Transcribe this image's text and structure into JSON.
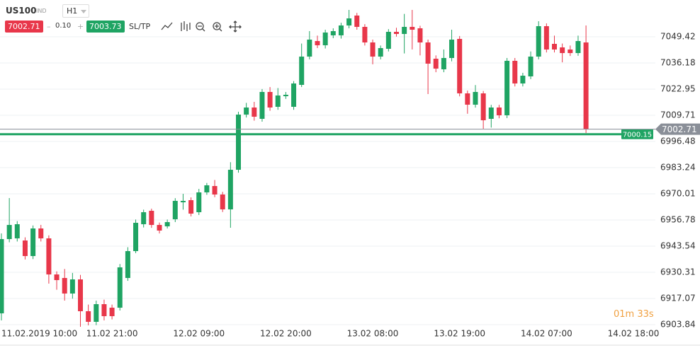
{
  "header": {
    "symbol": "US100",
    "market": "IND",
    "timeframe": "H1",
    "bid": "7002.71",
    "minus": "–",
    "spread": "0.10",
    "plus": "+",
    "ask": "7003.73",
    "sltp": "SL/TP",
    "timer_minutes": "01m",
    "timer_seconds": "33s"
  },
  "chart_data": {
    "type": "candlestick",
    "categories": [
      null,
      null,
      null,
      "11.02.2019 10:00",
      null,
      null,
      null,
      null,
      null,
      null,
      null,
      null,
      null,
      null,
      "11.02 21:00",
      null,
      null,
      null,
      null,
      null,
      null,
      null,
      null,
      null,
      null,
      "12.02 09:00",
      null,
      null,
      null,
      null,
      null,
      null,
      null,
      null,
      null,
      null,
      "12.02 20:00",
      null,
      null,
      null,
      null,
      null,
      null,
      null,
      null,
      null,
      null,
      "13.02 08:00",
      null,
      null,
      null,
      null,
      null,
      null,
      null,
      null,
      null,
      null,
      "13.02 19:00",
      null,
      null,
      null,
      null,
      null,
      null,
      null,
      null,
      null,
      null,
      "14.02 07:00",
      null,
      null,
      null,
      null,
      null,
      null,
      null,
      null,
      null,
      null,
      "14.02 18:00"
    ],
    "open": [
      6909.57,
      6947.12,
      6947.48,
      6946.41,
      6938.54,
      6952.49,
      6947.48,
      6929.24,
      6927.45,
      6919.58,
      6926.73,
      6910.64,
      6905.28,
      6914.21,
      6912.42,
      6912.42,
      6927.45,
      6941.04,
      6954.63,
      6961.43,
      6954.27,
      6953.56,
      6957.14,
      6965.72,
      6966.8,
      6960.71,
      6970.73,
      6973.95,
      6969.66,
      6962.14,
      6982.17,
      7010.07,
      7013.65,
      7007.93,
      7021.52,
      7014.01,
      7019.37,
      7014.01,
      7025.1,
      7039.4,
      7047.27,
      7045.13,
      7050.14,
      7050.14,
      7055.14,
      7060.15,
      7054.43,
      7046.56,
      7039.4,
      7043.34,
      7051.92,
      7050.85,
      7054.43,
      7053.71,
      7046.56,
      7038.33,
      7032.97,
      7038.69,
      7048.35,
      7020.8,
      7015.08,
      7020.8,
      7007.93,
      7013.65,
      7009.72,
      7037.26,
      7025.81,
      7029.39,
      7039.4,
      7054.79,
      7045.84,
      7044.05,
      7042.98,
      7041.19,
      7046.56,
      null,
      null,
      null,
      null,
      null,
      null
    ],
    "high": [
      6950.0,
      6967.87,
      6956.2,
      6948.0,
      6954.0,
      6954.3,
      6949.0,
      6930.8,
      6932.0,
      6930.0,
      6929.0,
      6914.0,
      6916.0,
      6916.5,
      6914.0,
      6934.5,
      6943.0,
      6957.0,
      6962.0,
      6962.5,
      6955.5,
      6957.0,
      6967.8,
      6970.0,
      6968.2,
      6972.5,
      6975.5,
      6977.0,
      6971.0,
      6986.0,
      7011.5,
      7016.0,
      7016.5,
      7023.0,
      7024.0,
      7023.5,
      7021.5,
      7027.0,
      7046.0,
      7052.3,
      7050.0,
      7053.0,
      7053.7,
      7056.5,
      7063.01,
      7061.5,
      7055.8,
      7048.0,
      7045.0,
      7053.3,
      7054.0,
      7061.0,
      7063.01,
      7055.0,
      7048.0,
      7040.0,
      7043.0,
      7053.0,
      7049.8,
      7022.2,
      7025.0,
      7022.0,
      7015.0,
      7015.0,
      7038.7,
      7038.7,
      7031.2,
      7042.0,
      7057.29,
      7056.2,
      7050.0,
      7046.0,
      7045.0,
      7050.0,
      7055.14,
      null,
      null,
      null,
      null,
      null,
      null
    ],
    "low": [
      6906.0,
      6945.5,
      6945.9,
      6936.8,
      6937.0,
      6945.9,
      6924.6,
      6921.5,
      6916.0,
      6917.0,
      6902.77,
      6903.5,
      6903.6,
      6906.0,
      6906.5,
      6911.0,
      6926.0,
      6940.0,
      6953.0,
      6952.8,
      6950.0,
      6952.5,
      6955.7,
      6962.0,
      6958.6,
      6959.3,
      6969.5,
      6968.3,
      6960.8,
      6952.85,
      6980.7,
      7008.6,
      7007.0,
      7006.5,
      7012.0,
      7012.5,
      7018.0,
      7012.5,
      7024.0,
      7038.0,
      7043.7,
      7043.5,
      7048.7,
      7048.5,
      7053.7,
      7053.0,
      7045.0,
      7035.5,
      7038.0,
      7042.0,
      7049.5,
      7041.0,
      7043.0,
      7040.0,
      7020.45,
      7031.5,
      7031.5,
      7037.0,
      7019.3,
      7010.5,
      7013.6,
      7002.9,
      7003.5,
      7008.2,
      7008.3,
      7024.3,
      7024.3,
      7028.0,
      7038.0,
      7041.5,
      7041.5,
      7036.5,
      7039.7,
      7039.8,
      7000.77,
      null,
      null,
      null,
      null,
      null,
      null
    ],
    "close": [
      6947.12,
      6954.27,
      6954.63,
      6938.54,
      6952.49,
      6947.48,
      6929.24,
      6926.38,
      6919.58,
      6926.73,
      6910.64,
      6905.28,
      6914.21,
      6908.14,
      6908.14,
      6932.82,
      6941.04,
      6955.35,
      6960.71,
      6954.27,
      6951.42,
      6955.71,
      6966.44,
      6966.44,
      6960.0,
      6970.73,
      6974.31,
      6969.66,
      6962.14,
      6982.17,
      7010.07,
      7013.65,
      7009.0,
      7021.52,
      7013.65,
      7019.73,
      7020.09,
      7025.81,
      7039.4,
      7047.99,
      7045.13,
      7051.57,
      7052.28,
      7055.14,
      7058.72,
      7054.43,
      7046.56,
      7039.4,
      7043.7,
      7051.92,
      7050.85,
      7054.43,
      7053.0,
      7046.56,
      7035.83,
      7033.32,
      7038.69,
      7047.99,
      7020.8,
      7015.08,
      7021.52,
      7007.21,
      7013.65,
      7009.72,
      7037.26,
      7025.81,
      7029.75,
      7039.4,
      7054.79,
      7042.98,
      7042.98,
      7041.19,
      7041.19,
      7047.27,
      7002.71,
      null,
      null,
      null,
      null,
      null,
      null
    ],
    "up_color": "#1fa463",
    "down_color": "#e8374a",
    "ylim": [
      6902.77,
      7068.02
    ],
    "yticks": [
      7049.42,
      7036.18,
      7022.95,
      7009.71,
      6996.48,
      6983.24,
      6970.01,
      6956.78,
      6943.54,
      6930.31,
      6917.07,
      6903.84
    ],
    "grid": true,
    "price_lines": [
      {
        "value": 7000.15,
        "color": "#1fa463"
      },
      {
        "value": 7002.71,
        "color": "#8a8f98"
      }
    ]
  }
}
